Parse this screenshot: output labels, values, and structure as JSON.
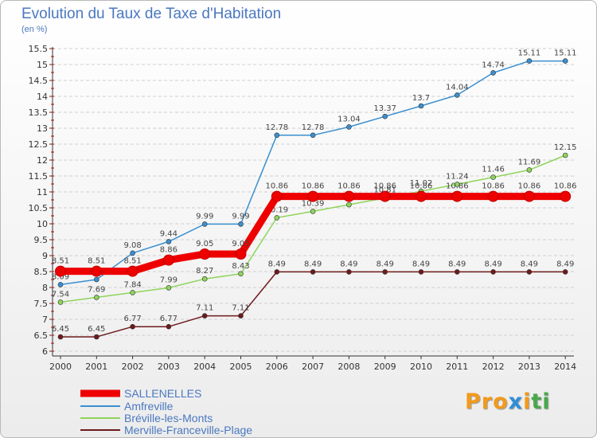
{
  "title": "Evolution du Taux de Taxe d'Habitation",
  "subtitle": "(en %)",
  "logo": "Proxiti",
  "chart_data": {
    "type": "line",
    "title": "Evolution du Taux de Taxe d'Habitation",
    "ylabel": "(en %)",
    "xlabel": "",
    "x": [
      2000,
      2001,
      2002,
      2003,
      2004,
      2005,
      2006,
      2007,
      2008,
      2009,
      2010,
      2011,
      2012,
      2013,
      2014
    ],
    "ylim": [
      6,
      15.5
    ],
    "yticks": [
      "6",
      "6.5",
      "7",
      "7.5",
      "8",
      "8.5",
      "9",
      "9.5",
      "10",
      "10.5",
      "11",
      "11.5",
      "12",
      "12.5",
      "13",
      "13.5",
      "14",
      "14.5",
      "15",
      "15.5"
    ],
    "grid": "horizontal dashed",
    "legend": "bottom-left",
    "series": [
      {
        "name": "SALLENELLES",
        "color": "#ee0000",
        "values": [
          8.51,
          8.51,
          8.51,
          8.86,
          9.05,
          9.05,
          10.86,
          10.86,
          10.86,
          10.86,
          10.86,
          10.86,
          10.86,
          10.86,
          10.86
        ],
        "labels": [
          "8.51",
          "8.51",
          "8.51",
          "8.86",
          "9.05",
          "9.05",
          "10.86",
          "10.86",
          "10.86",
          "10.86",
          "10.86",
          "10.86",
          "10.86",
          "10.86",
          "10.86"
        ]
      },
      {
        "name": "Amfreville",
        "color": "#3a8fd0",
        "values": [
          8.09,
          8.25,
          9.08,
          9.44,
          9.99,
          9.99,
          12.78,
          12.78,
          13.04,
          13.37,
          13.7,
          14.04,
          14.74,
          15.11,
          15.11
        ],
        "labels": [
          "8.09",
          "8.25",
          "9.08",
          "9.44",
          "9.99",
          "9.99",
          "12.78",
          "12.78",
          "13.04",
          "13.37",
          "13.7",
          "14.04",
          "14.74",
          "15.11",
          "15.11"
        ]
      },
      {
        "name": "Bréville-les-Monts",
        "color": "#8ed45a",
        "values": [
          7.54,
          7.69,
          7.84,
          7.99,
          8.27,
          8.43,
          10.19,
          10.39,
          10.6,
          10.81,
          11.02,
          11.24,
          11.46,
          11.69,
          12.15
        ],
        "labels": [
          "7.54",
          "7.69",
          "7.84",
          "7.99",
          "8.27",
          "8.43",
          "10.19",
          "10.39",
          "10.6",
          "10.81",
          "11.02",
          "11.24",
          "11.46",
          "11.69",
          "12.15"
        ]
      },
      {
        "name": "Merville-Franceville-Plage",
        "color": "#6e1a1a",
        "values": [
          6.45,
          6.45,
          6.77,
          6.77,
          7.11,
          7.11,
          8.49,
          8.49,
          8.49,
          8.49,
          8.49,
          8.49,
          8.49,
          8.49,
          8.49
        ],
        "labels": [
          "6.45",
          "6.45",
          "6.77",
          "6.77",
          "7.11",
          "7.11",
          "8.49",
          "8.49",
          "8.49",
          "8.49",
          "8.49",
          "8.49",
          "8.49",
          "8.49",
          "8.49"
        ]
      }
    ]
  }
}
